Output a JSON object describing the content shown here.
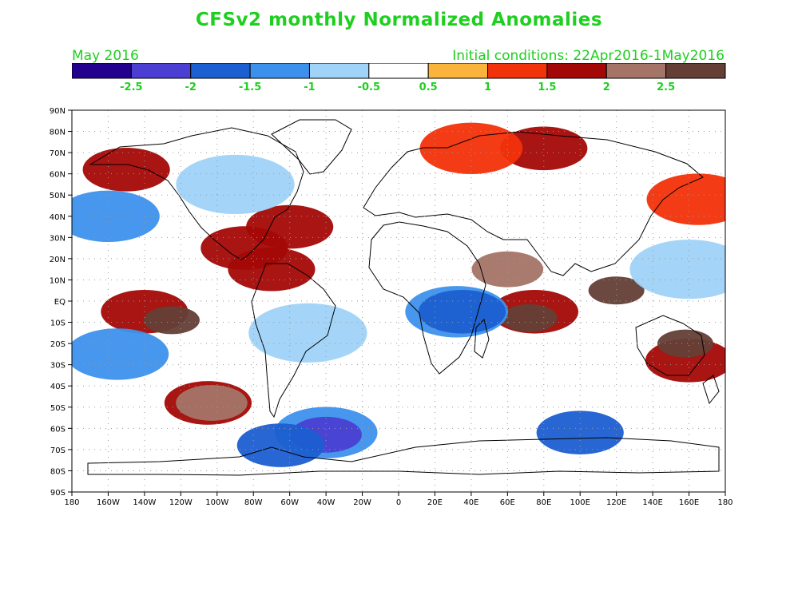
{
  "title": "CFSv2 monthly Normalized Anomalies",
  "period": "May 2016",
  "init_conditions": "Initial conditions: 22Apr2016-1May2016",
  "colors": {
    "text_green": "#1fcf1f",
    "bins": [
      "#24008f",
      "#4a3fd2",
      "#1c5fd1",
      "#3c91ec",
      "#9fd3f8",
      "#ffffff",
      "#fbb43b",
      "#f2320a",
      "#a30806",
      "#a47467",
      "#633f36"
    ]
  },
  "colorbar_ticks": [
    "-2.5",
    "-2",
    "-1.5",
    "-1",
    "-0.5",
    "0.5",
    "1",
    "1.5",
    "2",
    "2.5"
  ],
  "lat_labels": [
    "90N",
    "80N",
    "70N",
    "60N",
    "50N",
    "40N",
    "30N",
    "20N",
    "10N",
    "EQ",
    "10S",
    "20S",
    "30S",
    "40S",
    "50S",
    "60S",
    "70S",
    "80S",
    "90S"
  ],
  "lon_labels": [
    "180",
    "160W",
    "140W",
    "120W",
    "100W",
    "80W",
    "60W",
    "40W",
    "20W",
    "0",
    "20E",
    "40E",
    "60E",
    "80E",
    "100E",
    "120E",
    "140E",
    "160E",
    "180"
  ],
  "anomaly_regions": [
    {
      "name": "east-pacific-eq-warm",
      "lon": -140,
      "lat": -5,
      "level": 3
    },
    {
      "name": "east-pacific-core",
      "lon": -125,
      "lat": -9,
      "level": 5
    },
    {
      "name": "indian-ocean-warm",
      "lon": 75,
      "lat": -5,
      "level": 3
    },
    {
      "name": "indian-ocean-core",
      "lon": 72,
      "lat": -8,
      "level": 5
    },
    {
      "name": "maritime-continent-core",
      "lon": 120,
      "lat": 5,
      "level": 5
    },
    {
      "name": "arabian-sea-core",
      "lon": 60,
      "lat": 15,
      "level": 4
    },
    {
      "name": "south-pacific-warm",
      "lon": -105,
      "lat": -48,
      "level": 3
    },
    {
      "name": "south-pacific-core",
      "lon": -103,
      "lat": -48,
      "level": 4
    },
    {
      "name": "australia-east-warm",
      "lon": 160,
      "lat": -28,
      "level": 3
    },
    {
      "name": "australia-east-core",
      "lon": 158,
      "lat": -20,
      "level": 5
    },
    {
      "name": "gulf-mexico-warm",
      "lon": -85,
      "lat": 25,
      "level": 3
    },
    {
      "name": "caribbean-warm",
      "lon": -70,
      "lat": 15,
      "level": 3
    },
    {
      "name": "n-atlantic-gulfstream",
      "lon": -60,
      "lat": 35,
      "level": 3
    },
    {
      "name": "alaska-warm",
      "lon": -150,
      "lat": 62,
      "level": 3
    },
    {
      "name": "siberia-warm",
      "lon": 80,
      "lat": 72,
      "level": 3
    },
    {
      "name": "north-pacific-warm",
      "lon": 165,
      "lat": 48,
      "level": 2
    },
    {
      "name": "arctic-russia-warm",
      "lon": 40,
      "lat": 72,
      "level": 2
    },
    {
      "name": "southern-ocean-cold",
      "lon": -40,
      "lat": -62,
      "level": -2
    },
    {
      "name": "southern-ocean-core",
      "lon": -40,
      "lat": -63,
      "level": -4
    },
    {
      "name": "weddell-cold",
      "lon": -65,
      "lat": -68,
      "level": -3
    },
    {
      "name": "east-africa-cold",
      "lon": 32,
      "lat": -5,
      "level": -2
    },
    {
      "name": "east-africa-core",
      "lon": 35,
      "lat": -5,
      "level": -3
    },
    {
      "name": "sw-pacific-cold",
      "lon": -155,
      "lat": -25,
      "level": -2
    },
    {
      "name": "antarctic-india-cold",
      "lon": 100,
      "lat": -62,
      "level": -3
    },
    {
      "name": "nw-pacific-cold",
      "lon": -160,
      "lat": 40,
      "level": -2
    },
    {
      "name": "canada-cold",
      "lon": -90,
      "lat": 55,
      "level": -1
    },
    {
      "name": "central-pacific-cold",
      "lon": 160,
      "lat": 15,
      "level": -1
    },
    {
      "name": "brazil-cold",
      "lon": -50,
      "lat": -15,
      "level": -1
    }
  ]
}
